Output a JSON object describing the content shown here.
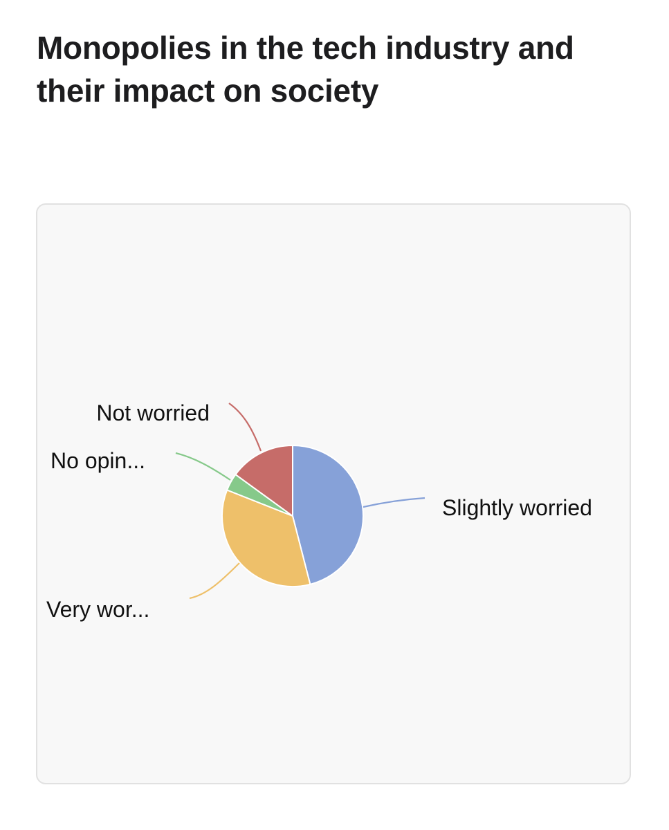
{
  "page": {
    "title": "Monopolies in the tech industry and their impact on society"
  },
  "chart_data": {
    "type": "pie",
    "title": "",
    "legend": "none (labels placed outside slices with leader lines)",
    "slices": [
      {
        "label": "Slightly worried",
        "value": 46,
        "color": "#86a1d8"
      },
      {
        "label": "Very wor...",
        "value": 35,
        "color": "#eec06a"
      },
      {
        "label": "No opin...",
        "value": 4,
        "color": "#86c98a"
      },
      {
        "label": "Not worried",
        "value": 15,
        "color": "#c66c69"
      }
    ]
  }
}
